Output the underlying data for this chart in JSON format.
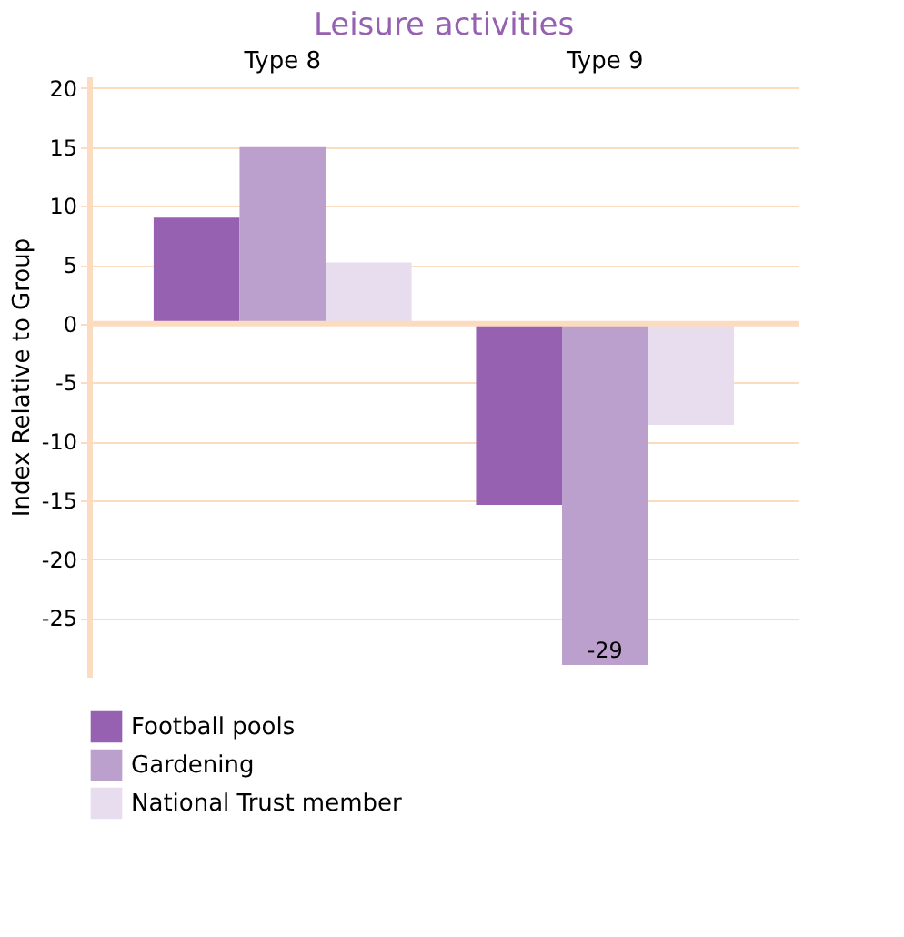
{
  "chart_data": {
    "type": "bar",
    "title": "Leisure activities",
    "ylabel": "Index Relative to Group",
    "categories": [
      "Type 8",
      "Type 9"
    ],
    "series": [
      {
        "name": "Football pools",
        "color": "#9561b0",
        "values": [
          9,
          -15.4
        ]
      },
      {
        "name": "Gardening",
        "color": "#bba0cd",
        "values": [
          15,
          -29
        ],
        "value_labels": [
          null,
          "-29"
        ]
      },
      {
        "name": "National Trust member",
        "color": "#e8ddef",
        "values": [
          5.2,
          -8.6
        ]
      }
    ],
    "ylim": [
      -30,
      21
    ],
    "yticks": [
      -25,
      -20,
      -15,
      -10,
      -5,
      0,
      5,
      10,
      15,
      20
    ],
    "grid": "y",
    "legend": "bottom",
    "ref_lines": [
      {
        "axis": "y",
        "value": 0,
        "color": "#fbdcc0"
      }
    ]
  }
}
